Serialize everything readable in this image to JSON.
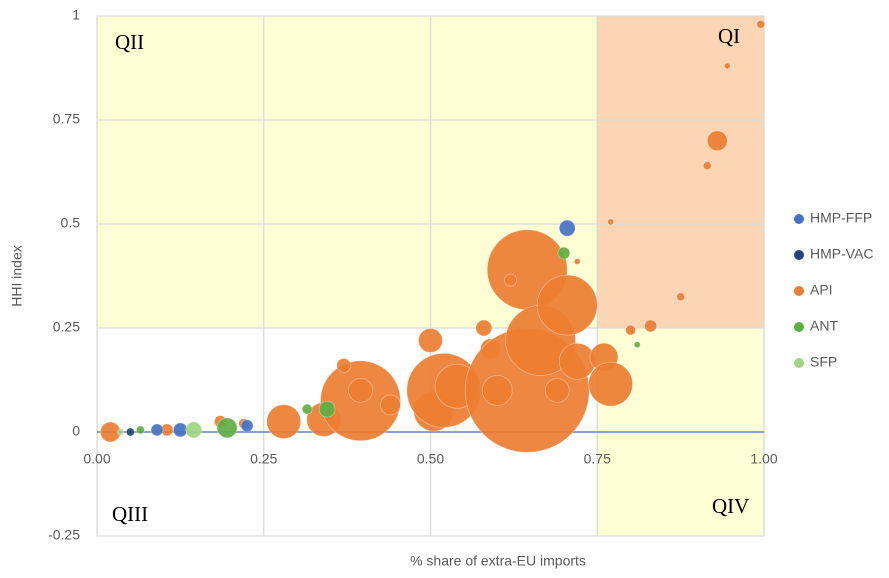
{
  "chart_data": {
    "type": "bubble",
    "xlabel": "% share of extra-EU imports",
    "ylabel": "HHI index",
    "annotations": [
      "QI",
      "QII",
      "QIII",
      "QIV"
    ],
    "xlim": [
      0,
      1
    ],
    "ylim": [
      -0.25,
      1
    ],
    "xticks": [
      {
        "value": 0,
        "label": "0.00"
      },
      {
        "value": 0.25,
        "label": "0.25"
      },
      {
        "value": 0.5,
        "label": "0.50"
      },
      {
        "value": 0.75,
        "label": "0.75"
      },
      {
        "value": 1,
        "label": "1.00"
      }
    ],
    "yticks": [
      -0.25,
      0,
      0.25,
      0.5,
      0.75,
      1
    ],
    "grid": true,
    "legend": "right",
    "series": [
      {
        "name": "HMP-FFP",
        "color": "#4472c4",
        "x": [
          0.705,
          0.09,
          0.125,
          0.225
        ],
        "values": [
          0.49,
          0.005,
          0.005,
          0.015
        ],
        "size": [
          6.4,
          3.6,
          4.9,
          3.6
        ]
      },
      {
        "name": "HMP-VAC",
        "color": "#264478",
        "x": [
          0.05
        ],
        "values": [
          0
        ],
        "size": [
          1.6
        ]
      },
      {
        "name": "API",
        "color": "#ed7d31",
        "x": [
          0.02,
          0.105,
          0.28,
          0.34,
          0.395,
          0.395,
          0.44,
          0.5,
          0.505,
          0.52,
          0.54,
          0.59,
          0.645,
          0.6,
          0.69,
          0.645,
          0.665,
          0.705,
          0.72,
          0.76,
          0.77,
          0.93,
          0.915,
          0.995,
          0.945,
          0.83,
          0.8,
          0.62,
          0.58,
          0.37,
          0.185,
          0.22,
          0.875,
          0.77,
          0.72
        ],
        "values": [
          0,
          0.005,
          0.025,
          0.03,
          0.075,
          0.1,
          0.065,
          0.22,
          0.05,
          0.1,
          0.11,
          0.2,
          0.1,
          0.1,
          0.1,
          0.39,
          0.22,
          0.305,
          0.17,
          0.18,
          0.115,
          0.7,
          0.64,
          0.98,
          0.88,
          0.255,
          0.245,
          0.365,
          0.25,
          0.16,
          0.025,
          0.02,
          0.325,
          0.505,
          0.41
        ],
        "size": [
          10,
          3.6,
          28.9,
          28.9,
          160,
          14.4,
          10,
          14.4,
          40,
          136.9,
          48.4,
          10,
          384.4,
          22.5,
          14.4,
          160,
          122.5,
          90,
          32.4,
          19.6,
          48.4,
          10,
          1.6,
          1.6,
          0.9,
          3.6,
          2.5,
          3.6,
          6.4,
          4.9,
          3.6,
          2.5,
          1.6,
          0.9,
          0.9
        ]
      },
      {
        "name": "ANT",
        "color": "#5fae44",
        "x": [
          0.195,
          0.345,
          0.315,
          0.7,
          0.81,
          0.065
        ],
        "values": [
          0.01,
          0.055,
          0.055,
          0.43,
          0.21,
          0.005
        ],
        "size": [
          10,
          6.4,
          2.5,
          3.6,
          0.9,
          1.6
        ]
      },
      {
        "name": "SFP",
        "color": "#9fd57e",
        "x": [
          0.145,
          0.035
        ],
        "values": [
          0.005,
          0
        ],
        "size": [
          6.4,
          0.9
        ]
      }
    ]
  }
}
